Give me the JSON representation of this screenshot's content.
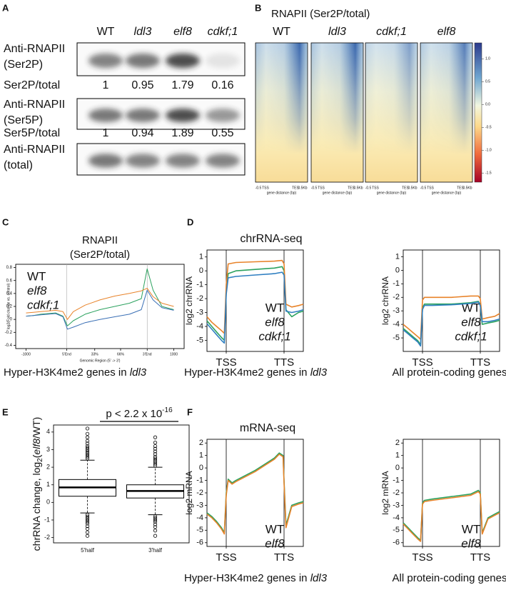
{
  "panel_labels": [
    "A",
    "B",
    "C",
    "D",
    "E",
    "F"
  ],
  "blot": {
    "columns": [
      "WT",
      "ldl3",
      "elf8",
      "cdkf;1"
    ],
    "rows": [
      [
        "Anti-RNAPII",
        "(Ser2P)"
      ],
      [
        "Anti-RNAPII",
        "(Ser5P)"
      ],
      [
        "Anti-RNAPII",
        "(total)"
      ]
    ],
    "ratios": [
      {
        "label": "Ser2P/total",
        "values": [
          1,
          0.95,
          1.79,
          0.16
        ]
      },
      {
        "label": "Ser5P/total",
        "values": [
          1,
          0.94,
          1.89,
          0.55
        ]
      }
    ]
  },
  "heatmap": {
    "title": "RNAPII (Ser2P/total)",
    "columns": [
      "WT",
      "ldl3",
      "cdkf;1",
      "elf8"
    ],
    "xtick_labels": [
      "-0.5",
      "TSS",
      "TES",
      "0.5Kb"
    ],
    "xlabel": "gene distance (bp)",
    "colorbar_lim": [
      -1.7,
      1.35
    ],
    "colorbar_ticks": [
      {
        "value": 1,
        "label": "1.0"
      },
      0.5,
      {
        "value": 0,
        "label": "0.0"
      },
      -0.5,
      {
        "value": -1,
        "label": "-1.0"
      },
      -1.5
    ]
  },
  "chart_data": [
    {
      "type": "line",
      "title": [
        "RNAPII",
        "(Ser2P/total)"
      ],
      "xlabel": "Genomic Region (5' -> 3')",
      "ylabel": "log2(Fold change vs. control)",
      "xlim": [
        -7,
        107
      ],
      "xticks": [
        {
          "value": 0,
          "label": "-1000"
        },
        {
          "value": 27.5,
          "label": "5'End"
        },
        {
          "value": 46.5,
          "label": "33%"
        },
        {
          "value": 64,
          "label": "66%"
        },
        {
          "value": 82,
          "label": "3'End"
        },
        {
          "value": 100,
          "label": "1000"
        }
      ],
      "ylim": [
        -0.45,
        0.85
      ],
      "yticks": [
        -0.4,
        -0.2,
        0,
        0.2,
        0.4,
        0.6,
        0.8
      ],
      "vlines": [
        27.5,
        82
      ],
      "x": [
        0,
        5,
        10,
        15,
        20,
        25,
        28,
        32,
        40,
        50,
        60,
        70,
        78,
        82,
        86,
        92,
        100
      ],
      "series": [
        {
          "name": "WT",
          "color": "#2ca25f",
          "values": [
            0.05,
            0.06,
            0.08,
            0.09,
            0.1,
            0.05,
            -0.1,
            -0.02,
            0.08,
            0.15,
            0.2,
            0.25,
            0.32,
            0.78,
            0.45,
            0.2,
            0.15
          ]
        },
        {
          "name": "elf8",
          "color": "#e8832a",
          "values": [
            0.1,
            0.11,
            0.12,
            0.13,
            0.14,
            0.12,
            0.0,
            0.12,
            0.22,
            0.3,
            0.36,
            0.4,
            0.44,
            0.48,
            0.35,
            0.25,
            0.2
          ]
        },
        {
          "name": "cdkf;1",
          "color": "#3a6fb5",
          "values": [
            0.05,
            0.06,
            0.07,
            0.08,
            0.09,
            0.04,
            -0.15,
            -0.12,
            -0.05,
            0.0,
            0.04,
            0.08,
            0.15,
            0.45,
            0.3,
            0.18,
            0.14
          ]
        }
      ],
      "caption": [
        "Hyper-H3K4me2 genes in",
        "ldl3"
      ]
    },
    {
      "type": "line",
      "title": "chrRNA-seq",
      "ylabel": "log2 chrRNA",
      "xlim": [
        0,
        100
      ],
      "xticks": [
        {
          "value": 20,
          "label": "TSS"
        },
        {
          "value": 80,
          "label": "TTS"
        }
      ],
      "ylim": [
        -5.8,
        1.5
      ],
      "yticks": [
        -5,
        -4,
        -3,
        -2,
        -1,
        0,
        1
      ],
      "vlines": [
        20,
        80
      ],
      "x": [
        0,
        5,
        10,
        15,
        18,
        20,
        22,
        30,
        50,
        70,
        78,
        80,
        82,
        88,
        95,
        100
      ],
      "series": [
        {
          "name": "WT",
          "color": "#2ca25f",
          "values": [
            -3.6,
            -4.0,
            -4.4,
            -4.8,
            -5.0,
            -1.5,
            -0.2,
            0.0,
            0.1,
            0.2,
            0.3,
            0.0,
            -2.8,
            -3.3,
            -3.0,
            -2.9
          ]
        },
        {
          "name": "elf8",
          "color": "#e8832a",
          "values": [
            -3.3,
            -3.7,
            -4.0,
            -4.3,
            -4.5,
            -1.0,
            0.5,
            0.6,
            0.65,
            0.7,
            0.75,
            0.5,
            -2.4,
            -2.6,
            -2.5,
            -2.4
          ]
        },
        {
          "name": "cdkf;1",
          "color": "#2f7fc1",
          "values": [
            -3.8,
            -4.2,
            -4.6,
            -5.0,
            -5.2,
            -1.7,
            -0.5,
            -0.4,
            -0.3,
            -0.2,
            -0.1,
            -0.3,
            -2.9,
            -3.0,
            -2.9,
            -2.8
          ]
        }
      ],
      "caption": [
        "Hyper-H3K4me2 genes in",
        "ldl3"
      ]
    },
    {
      "type": "line",
      "ylabel": "log2 chrRNA",
      "xlim": [
        0,
        100
      ],
      "xticks": [
        {
          "value": 20,
          "label": "TSS"
        },
        {
          "value": 80,
          "label": "TTS"
        }
      ],
      "ylim": [
        -6,
        1.5
      ],
      "yticks": [
        -5,
        -4,
        -3,
        -2,
        -1,
        0,
        1
      ],
      "vlines": [
        20,
        80
      ],
      "x": [
        0,
        5,
        10,
        15,
        18,
        20,
        22,
        30,
        50,
        70,
        78,
        80,
        82,
        88,
        95,
        100
      ],
      "series": [
        {
          "name": "WT",
          "color": "#2ca25f",
          "values": [
            -4.3,
            -4.6,
            -4.9,
            -5.2,
            -5.5,
            -2.8,
            -2.5,
            -2.5,
            -2.5,
            -2.4,
            -2.3,
            -2.6,
            -4.0,
            -3.9,
            -3.8,
            -3.7
          ]
        },
        {
          "name": "elf8",
          "color": "#e8832a",
          "values": [
            -4.0,
            -4.3,
            -4.6,
            -4.9,
            -5.1,
            -2.2,
            -2.0,
            -2.0,
            -2.0,
            -1.9,
            -1.9,
            -2.1,
            -3.6,
            -3.5,
            -3.4,
            -3.2
          ]
        },
        {
          "name": "cdkf;1",
          "color": "#2f7fc1",
          "values": [
            -4.4,
            -4.7,
            -5.0,
            -5.3,
            -5.6,
            -2.9,
            -2.6,
            -2.6,
            -2.55,
            -2.45,
            -2.35,
            -2.6,
            -3.8,
            -3.8,
            -3.7,
            -3.6
          ]
        }
      ],
      "caption": "All protein-coding genes"
    },
    {
      "type": "box",
      "annotation": [
        "p < 2.2 x 10",
        "-16"
      ],
      "ylabel": [
        "chrRNA change, log",
        "2",
        "(",
        "elf8",
        "/WT)"
      ],
      "categories": [
        "5'half",
        "3'half"
      ],
      "ylim": [
        -2.3,
        4.4
      ],
      "yticks": [
        -2,
        -1,
        0,
        1,
        2,
        3,
        4
      ],
      "boxes": [
        {
          "whislo": -0.6,
          "q1": 0.35,
          "med": 0.85,
          "q3": 1.3,
          "whishi": 2.4,
          "fliers": [
            2.5,
            2.6,
            2.7,
            2.8,
            2.9,
            3.0,
            3.1,
            3.2,
            3.35,
            3.5,
            3.7,
            3.9,
            4.2,
            -0.7,
            -0.8,
            -0.9,
            -1.0,
            -1.1,
            -1.2,
            -1.35,
            -1.5,
            -1.7,
            -1.9
          ]
        },
        {
          "whislo": -0.7,
          "q1": 0.25,
          "med": 0.65,
          "q3": 1.0,
          "whishi": 2.0,
          "fliers": [
            2.1,
            2.2,
            2.3,
            2.4,
            2.5,
            2.6,
            2.75,
            2.9,
            3.05,
            3.2,
            3.4,
            3.7,
            -0.8,
            -0.9,
            -1.0,
            -1.1,
            -1.25,
            -1.4,
            -1.6,
            -1.9
          ]
        }
      ]
    },
    {
      "type": "line",
      "title": "mRNA-seq",
      "ylabel": "log2 mRNA",
      "xlim": [
        0,
        100
      ],
      "xticks": [
        {
          "value": 20,
          "label": "TSS"
        },
        {
          "value": 80,
          "label": "TTS"
        }
      ],
      "ylim": [
        -6.3,
        2.3
      ],
      "yticks": [
        -6,
        -5,
        -4,
        -3,
        -2,
        -1,
        0,
        1,
        2
      ],
      "vlines": [
        20,
        80
      ],
      "x": [
        0,
        5,
        10,
        15,
        18,
        20,
        22,
        26,
        30,
        40,
        50,
        60,
        70,
        75,
        79,
        80,
        82,
        88,
        95,
        100
      ],
      "series": [
        {
          "name": "WT",
          "color": "#2ca25f",
          "values": [
            -3.6,
            -3.9,
            -4.3,
            -4.8,
            -5.2,
            -2.0,
            -0.9,
            -1.2,
            -1.0,
            -0.6,
            -0.2,
            0.3,
            0.8,
            1.2,
            1.0,
            -1.0,
            -4.6,
            -3.0,
            -2.8,
            -2.7
          ]
        },
        {
          "name": "elf8",
          "color": "#e8832a",
          "values": [
            -3.7,
            -4.0,
            -4.4,
            -4.9,
            -5.3,
            -2.2,
            -1.0,
            -1.3,
            -1.1,
            -0.7,
            -0.3,
            0.2,
            0.7,
            1.1,
            0.9,
            -1.2,
            -4.8,
            -3.1,
            -2.9,
            -2.8
          ]
        }
      ],
      "caption": [
        "Hyper-H3K4me2 genes in",
        "ldl3"
      ]
    },
    {
      "type": "line",
      "ylabel": "log2 mRNA",
      "xlim": [
        0,
        100
      ],
      "xticks": [
        {
          "value": 20,
          "label": "TSS"
        },
        {
          "value": 80,
          "label": "TTS"
        }
      ],
      "ylim": [
        -6.3,
        2.3
      ],
      "yticks": [
        -6,
        -5,
        -4,
        -3,
        -2,
        -1,
        0,
        1,
        2
      ],
      "vlines": [
        20,
        80
      ],
      "x": [
        0,
        5,
        10,
        15,
        18,
        20,
        22,
        30,
        50,
        70,
        78,
        80,
        82,
        88,
        95,
        100
      ],
      "series": [
        {
          "name": "WT",
          "color": "#2ca25f",
          "values": [
            -4.4,
            -4.8,
            -5.2,
            -5.6,
            -5.8,
            -2.8,
            -2.6,
            -2.5,
            -2.3,
            -2.1,
            -1.8,
            -2.0,
            -5.2,
            -4.0,
            -3.7,
            -3.5
          ]
        },
        {
          "name": "elf8",
          "color": "#e8832a",
          "values": [
            -4.5,
            -4.9,
            -5.3,
            -5.7,
            -5.9,
            -2.9,
            -2.7,
            -2.6,
            -2.4,
            -2.2,
            -1.9,
            -2.1,
            -5.3,
            -4.1,
            -3.8,
            -3.6
          ]
        }
      ],
      "caption": "All protein-coding genes"
    }
  ]
}
